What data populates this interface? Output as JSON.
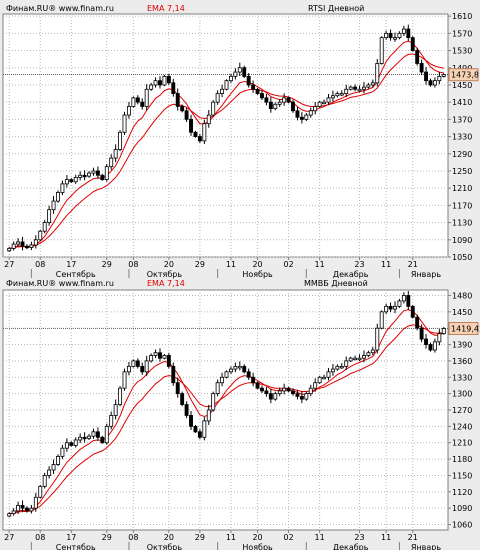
{
  "chart_data": [
    {
      "type": "candlestick",
      "header": {
        "source": "Финам.RU® www.finam.ru",
        "indicator": "EMA 7,14",
        "title": "RTSI Дневной"
      },
      "ylim": [
        1050,
        1615
      ],
      "yticks": [
        1610,
        1570,
        1530,
        1490,
        1450,
        1410,
        1370,
        1330,
        1290,
        1250,
        1210,
        1170,
        1130,
        1090,
        1050
      ],
      "last_value": "1473,81",
      "last_value_num": 1473.81,
      "x_date_labels": [
        "27",
        "08",
        "17",
        "29",
        "08",
        "20",
        "29",
        "11",
        "20",
        "02",
        "11",
        "23",
        "11",
        "21"
      ],
      "x_date_idx": [
        0,
        7,
        14,
        22,
        28,
        36,
        43,
        50,
        56,
        63,
        70,
        79,
        85,
        91
      ],
      "month_labels": [
        "Сентябрь",
        "Октябрь",
        "Ноябрь",
        "Декабрь",
        "Январь"
      ],
      "month_idx": [
        15,
        35,
        56,
        77,
        96
      ],
      "month_sep_idx": [
        5,
        27,
        47,
        67,
        88
      ],
      "closes": [
        1070,
        1080,
        1085,
        1075,
        1072,
        1078,
        1090,
        1110,
        1130,
        1160,
        1180,
        1200,
        1220,
        1230,
        1225,
        1235,
        1240,
        1238,
        1245,
        1250,
        1240,
        1230,
        1260,
        1280,
        1300,
        1340,
        1380,
        1400,
        1420,
        1410,
        1400,
        1440,
        1450,
        1460,
        1450,
        1470,
        1455,
        1430,
        1400,
        1390,
        1370,
        1340,
        1330,
        1320,
        1360,
        1380,
        1410,
        1430,
        1440,
        1460,
        1470,
        1480,
        1490,
        1470,
        1450,
        1440,
        1430,
        1420,
        1410,
        1395,
        1405,
        1410,
        1420,
        1410,
        1390,
        1375,
        1370,
        1380,
        1390,
        1400,
        1410,
        1410,
        1420,
        1425,
        1430,
        1430,
        1440,
        1445,
        1440,
        1440,
        1445,
        1450,
        1455,
        1500,
        1560,
        1570,
        1560,
        1560,
        1570,
        1580,
        1560,
        1530,
        1500,
        1480,
        1460,
        1450,
        1460,
        1470,
        1473.81
      ],
      "ema_fast": [
        1070,
        1072,
        1076,
        1075,
        1074,
        1075,
        1079,
        1087,
        1098,
        1114,
        1130,
        1148,
        1166,
        1182,
        1192,
        1203,
        1212,
        1219,
        1226,
        1232,
        1234,
        1233,
        1240,
        1250,
        1262,
        1282,
        1306,
        1329,
        1352,
        1366,
        1374,
        1391,
        1405,
        1419,
        1426,
        1437,
        1441,
        1438,
        1428,
        1418,
        1406,
        1389,
        1374,
        1360,
        1360,
        1365,
        1376,
        1390,
        1402,
        1417,
        1430,
        1443,
        1455,
        1458,
        1456,
        1452,
        1446,
        1440,
        1432,
        1423,
        1419,
        1416,
        1417,
        1415,
        1409,
        1400,
        1392,
        1389,
        1389,
        1392,
        1396,
        1400,
        1405,
        1410,
        1415,
        1419,
        1424,
        1429,
        1432,
        1434,
        1437,
        1440,
        1444,
        1458,
        1483,
        1504,
        1518,
        1528,
        1539,
        1549,
        1552,
        1547,
        1535,
        1521,
        1506,
        1492,
        1484,
        1480,
        1478
      ],
      "ema_slow": [
        1070,
        1071,
        1074,
        1074,
        1074,
        1074,
        1077,
        1082,
        1089,
        1098,
        1109,
        1121,
        1134,
        1147,
        1157,
        1168,
        1177,
        1186,
        1194,
        1202,
        1207,
        1210,
        1216,
        1225,
        1235,
        1249,
        1267,
        1285,
        1303,
        1317,
        1327,
        1342,
        1356,
        1370,
        1381,
        1393,
        1401,
        1405,
        1404,
        1402,
        1398,
        1390,
        1382,
        1374,
        1372,
        1373,
        1378,
        1385,
        1392,
        1401,
        1411,
        1421,
        1431,
        1436,
        1439,
        1440,
        1439,
        1437,
        1434,
        1429,
        1426,
        1424,
        1424,
        1422,
        1418,
        1412,
        1406,
        1402,
        1400,
        1400,
        1401,
        1402,
        1404,
        1407,
        1410,
        1413,
        1417,
        1421,
        1423,
        1425,
        1428,
        1431,
        1434,
        1443,
        1458,
        1473,
        1485,
        1495,
        1505,
        1515,
        1521,
        1522,
        1519,
        1514,
        1507,
        1499,
        1494,
        1491,
        1489
      ]
    },
    {
      "type": "candlestick",
      "header": {
        "source": "Финам.RU® www.finam.ru",
        "indicator": "EMA 7,14",
        "title": "ММВБ Дневной"
      },
      "ylim": [
        1050,
        1490
      ],
      "yticks": [
        1480,
        1450,
        1420,
        1390,
        1360,
        1330,
        1300,
        1270,
        1240,
        1210,
        1180,
        1150,
        1120,
        1090,
        1060
      ],
      "last_value": "1419,42",
      "last_value_num": 1419.42,
      "x_date_labels": [
        "27",
        "08",
        "17",
        "29",
        "08",
        "20",
        "29",
        "11",
        "20",
        "02",
        "11",
        "23",
        "11",
        "21"
      ],
      "x_date_idx": [
        0,
        7,
        14,
        22,
        28,
        36,
        43,
        50,
        56,
        63,
        70,
        79,
        85,
        91
      ],
      "month_labels": [
        "Сентябрь",
        "Октябрь",
        "Ноябрь",
        "Декабрь",
        "Январь"
      ],
      "month_idx": [
        15,
        35,
        56,
        77,
        96
      ],
      "month_sep_idx": [
        5,
        27,
        47,
        67,
        88
      ],
      "closes": [
        1080,
        1085,
        1095,
        1090,
        1085,
        1090,
        1110,
        1130,
        1150,
        1160,
        1170,
        1185,
        1200,
        1210,
        1205,
        1215,
        1220,
        1218,
        1222,
        1230,
        1220,
        1210,
        1240,
        1260,
        1280,
        1310,
        1340,
        1350,
        1360,
        1350,
        1340,
        1360,
        1370,
        1375,
        1365,
        1370,
        1350,
        1320,
        1300,
        1280,
        1260,
        1240,
        1230,
        1220,
        1250,
        1270,
        1300,
        1320,
        1330,
        1340,
        1345,
        1350,
        1350,
        1340,
        1330,
        1320,
        1310,
        1305,
        1300,
        1290,
        1300,
        1305,
        1310,
        1305,
        1300,
        1295,
        1290,
        1300,
        1310,
        1320,
        1330,
        1330,
        1340,
        1345,
        1350,
        1350,
        1360,
        1365,
        1365,
        1365,
        1370,
        1375,
        1380,
        1420,
        1450,
        1460,
        1455,
        1460,
        1470,
        1480,
        1460,
        1440,
        1420,
        1400,
        1390,
        1380,
        1395,
        1410,
        1419.42
      ],
      "ema_fast": [
        1080,
        1081,
        1085,
        1086,
        1086,
        1087,
        1093,
        1102,
        1114,
        1126,
        1137,
        1149,
        1162,
        1174,
        1182,
        1190,
        1198,
        1203,
        1208,
        1214,
        1215,
        1214,
        1220,
        1230,
        1242,
        1259,
        1280,
        1297,
        1313,
        1322,
        1327,
        1335,
        1344,
        1351,
        1355,
        1359,
        1357,
        1348,
        1336,
        1322,
        1306,
        1289,
        1275,
        1261,
        1258,
        1261,
        1271,
        1283,
        1294,
        1306,
        1315,
        1324,
        1330,
        1333,
        1332,
        1329,
        1324,
        1319,
        1314,
        1308,
        1306,
        1306,
        1307,
        1306,
        1305,
        1302,
        1299,
        1299,
        1302,
        1306,
        1312,
        1316,
        1322,
        1328,
        1335,
        1339,
        1345,
        1350,
        1354,
        1357,
        1361,
        1364,
        1368,
        1381,
        1398,
        1414,
        1424,
        1433,
        1443,
        1452,
        1454,
        1451,
        1443,
        1432,
        1421,
        1411,
        1407,
        1408,
        1411
      ],
      "ema_slow": [
        1080,
        1081,
        1083,
        1084,
        1084,
        1085,
        1089,
        1094,
        1102,
        1110,
        1119,
        1128,
        1138,
        1148,
        1156,
        1164,
        1171,
        1177,
        1183,
        1189,
        1192,
        1195,
        1201,
        1209,
        1218,
        1231,
        1246,
        1260,
        1273,
        1283,
        1290,
        1300,
        1309,
        1318,
        1324,
        1331,
        1333,
        1332,
        1327,
        1320,
        1312,
        1302,
        1291,
        1281,
        1277,
        1276,
        1279,
        1285,
        1291,
        1297,
        1304,
        1310,
        1315,
        1318,
        1320,
        1320,
        1319,
        1317,
        1315,
        1312,
        1310,
        1310,
        1310,
        1309,
        1308,
        1306,
        1304,
        1304,
        1305,
        1307,
        1310,
        1312,
        1316,
        1320,
        1324,
        1328,
        1332,
        1337,
        1340,
        1343,
        1347,
        1351,
        1355,
        1363,
        1374,
        1385,
        1393,
        1401,
        1410,
        1419,
        1424,
        1426,
        1425,
        1422,
        1418,
        1413,
        1411,
        1411,
        1412
      ]
    }
  ]
}
